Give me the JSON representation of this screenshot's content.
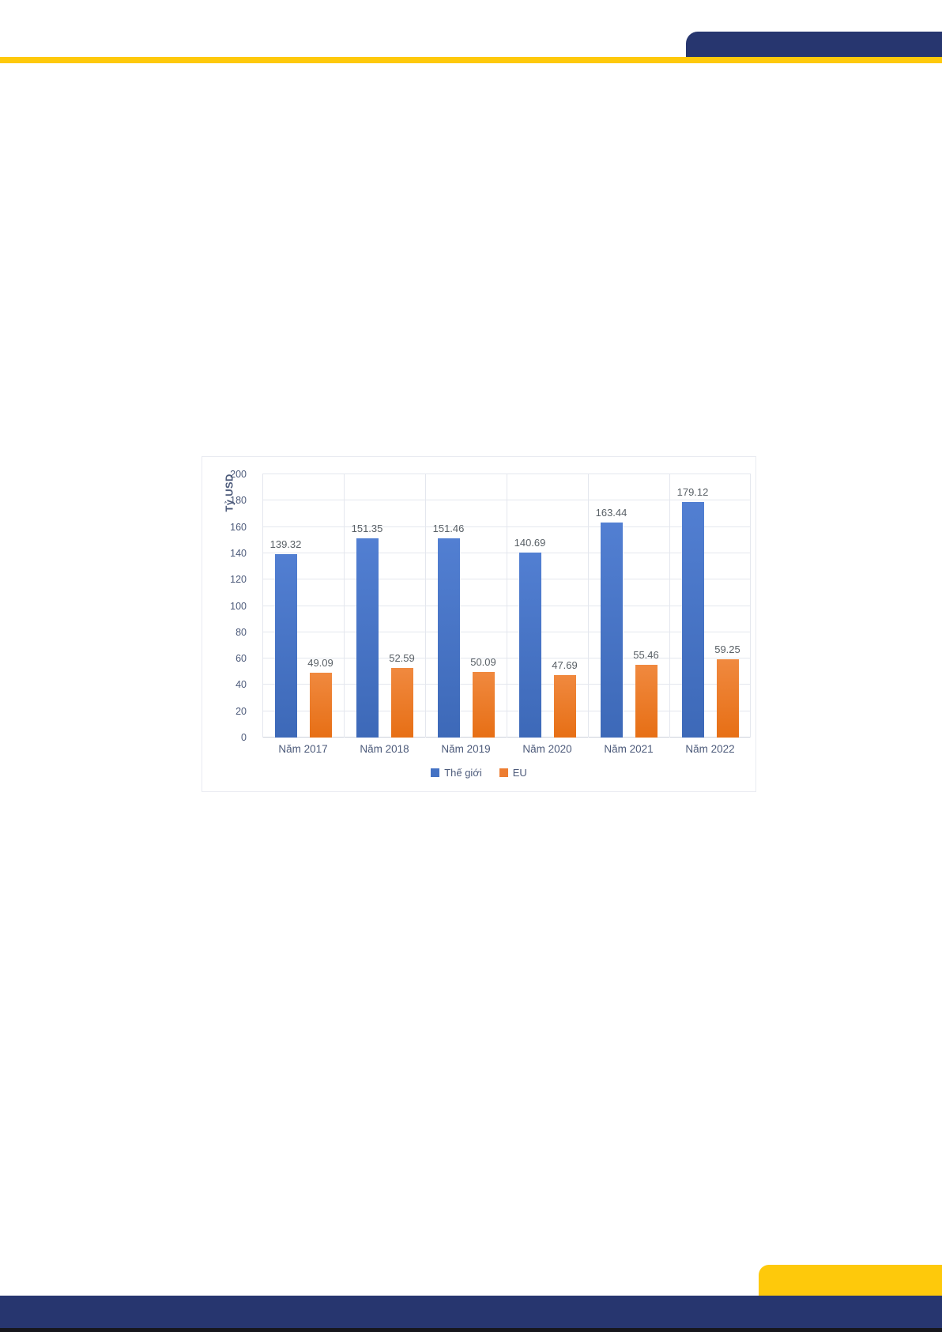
{
  "page": {
    "background": "#ffffff"
  },
  "colors": {
    "navy": "#27366F",
    "yellow": "#FEC90B",
    "grid": "#e4e7ee",
    "baseline": "#ccd1db",
    "axis_text": "#4c5a7a",
    "data_label": "#596066",
    "card_border": "#e9ebf1",
    "page_edge": "#17171c"
  },
  "chart_data": {
    "type": "bar",
    "title": "",
    "ylabel": "Tỷ USD",
    "xlabel": "",
    "categories": [
      "Năm 2017",
      "Năm 2018",
      "Năm 2019",
      "Năm 2020",
      "Năm 2021",
      "Năm 2022"
    ],
    "series": [
      {
        "name": "Thế giới",
        "color": "#4472C4",
        "values": [
          139.32,
          151.35,
          151.46,
          140.69,
          163.44,
          179.12
        ]
      },
      {
        "name": "EU",
        "color": "#ED7D31",
        "values": [
          49.09,
          52.59,
          50.09,
          47.69,
          55.46,
          59.25
        ]
      }
    ],
    "ylim": [
      0,
      200
    ],
    "ytick_step": 20,
    "grid": true,
    "legend_position": "bottom"
  }
}
